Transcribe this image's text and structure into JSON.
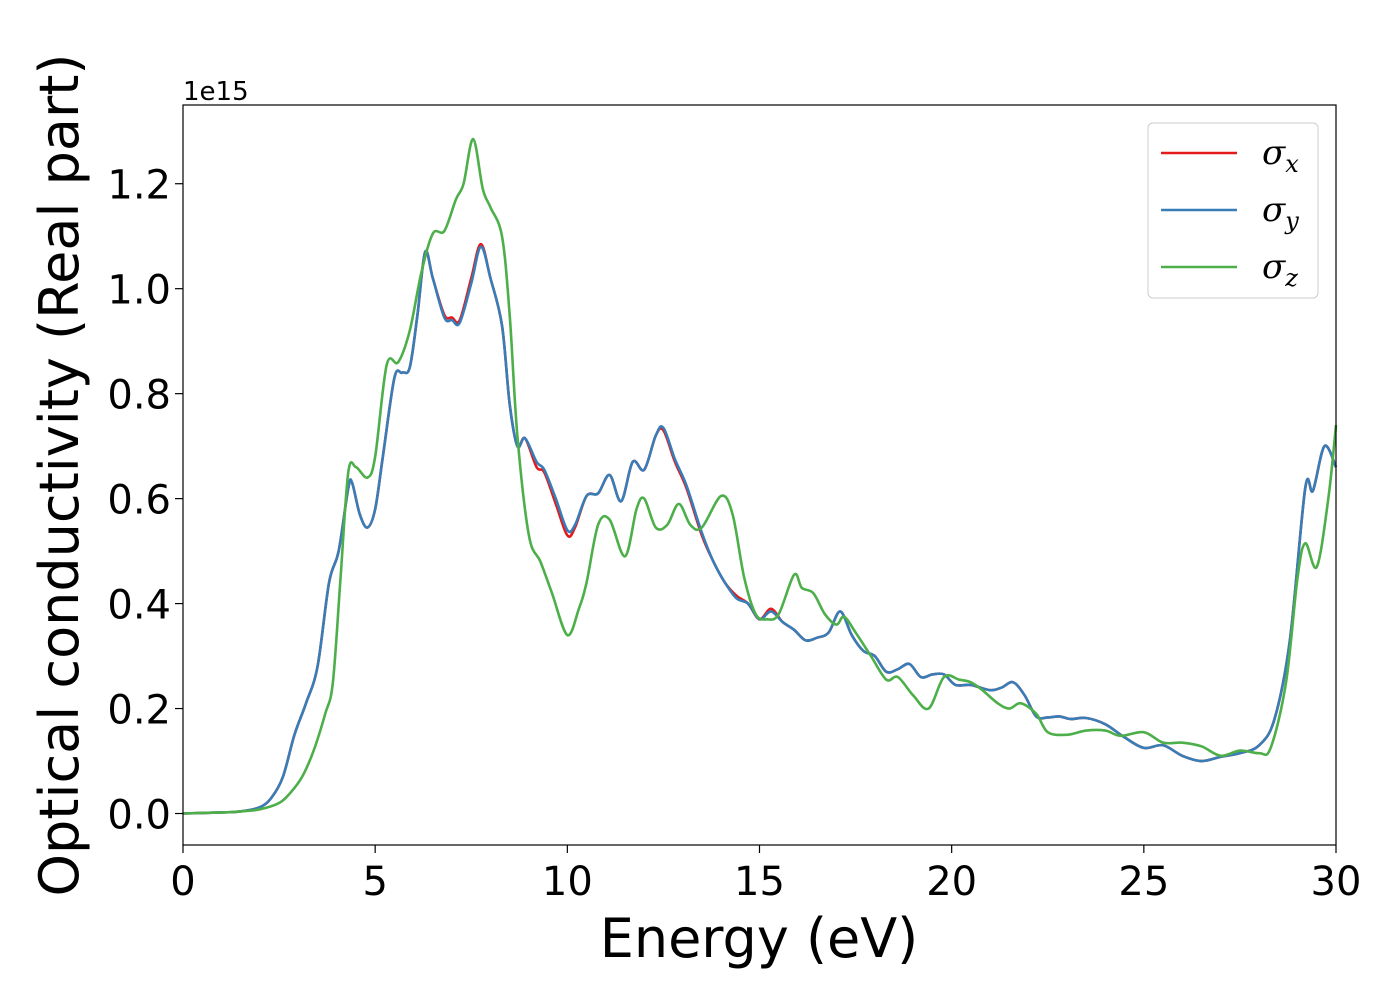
{
  "chart_data": {
    "type": "line",
    "title": "",
    "xlabel": "Energy (eV)",
    "ylabel": "Optical conductivity (Real part)",
    "y_offset_label": "1e15",
    "xlim": [
      0,
      30
    ],
    "ylim": [
      -0.06,
      1.35
    ],
    "x_ticks": [
      0,
      5,
      10,
      15,
      20,
      25,
      30
    ],
    "x_tick_labels": [
      "0",
      "5",
      "10",
      "15",
      "20",
      "25",
      "30"
    ],
    "y_ticks": [
      0.0,
      0.2,
      0.4,
      0.6,
      0.8,
      1.0,
      1.2
    ],
    "y_tick_labels": [
      "0.0",
      "0.2",
      "0.4",
      "0.6",
      "0.8",
      "1.0",
      "1.2"
    ],
    "grid": false,
    "legend_position": "top-right",
    "series": [
      {
        "name": "σx",
        "symbol": "σ",
        "subscript": "x",
        "color": "#e41a1c",
        "points": [
          [
            0,
            0
          ],
          [
            1,
            0.002
          ],
          [
            1.5,
            0.004
          ],
          [
            2,
            0.012
          ],
          [
            2.3,
            0.03
          ],
          [
            2.6,
            0.07
          ],
          [
            2.9,
            0.15
          ],
          [
            3.2,
            0.21
          ],
          [
            3.5,
            0.28
          ],
          [
            3.8,
            0.44
          ],
          [
            4.05,
            0.5
          ],
          [
            4.3,
            0.62
          ],
          [
            4.4,
            0.63
          ],
          [
            4.6,
            0.57
          ],
          [
            4.8,
            0.545
          ],
          [
            5.0,
            0.58
          ],
          [
            5.2,
            0.68
          ],
          [
            5.5,
            0.83
          ],
          [
            5.7,
            0.84
          ],
          [
            5.9,
            0.85
          ],
          [
            6.1,
            0.95
          ],
          [
            6.3,
            1.07
          ],
          [
            6.5,
            1.02
          ],
          [
            6.8,
            0.95
          ],
          [
            7.0,
            0.945
          ],
          [
            7.2,
            0.94
          ],
          [
            7.5,
            1.02
          ],
          [
            7.75,
            1.085
          ],
          [
            8.0,
            1.02
          ],
          [
            8.3,
            0.93
          ],
          [
            8.5,
            0.78
          ],
          [
            8.7,
            0.7
          ],
          [
            8.9,
            0.715
          ],
          [
            9.2,
            0.66
          ],
          [
            9.4,
            0.65
          ],
          [
            9.7,
            0.59
          ],
          [
            10.0,
            0.53
          ],
          [
            10.2,
            0.545
          ],
          [
            10.5,
            0.605
          ],
          [
            10.8,
            0.61
          ],
          [
            11.1,
            0.645
          ],
          [
            11.4,
            0.595
          ],
          [
            11.7,
            0.67
          ],
          [
            12.0,
            0.655
          ],
          [
            12.3,
            0.72
          ],
          [
            12.5,
            0.73
          ],
          [
            12.8,
            0.67
          ],
          [
            13.1,
            0.62
          ],
          [
            13.5,
            0.53
          ],
          [
            13.8,
            0.48
          ],
          [
            14.1,
            0.44
          ],
          [
            14.4,
            0.415
          ],
          [
            14.7,
            0.4
          ],
          [
            15.0,
            0.37
          ],
          [
            15.3,
            0.39
          ],
          [
            15.6,
            0.365
          ],
          [
            15.9,
            0.35
          ],
          [
            16.2,
            0.33
          ],
          [
            16.5,
            0.335
          ],
          [
            16.8,
            0.345
          ],
          [
            17.1,
            0.385
          ],
          [
            17.4,
            0.34
          ],
          [
            17.7,
            0.31
          ],
          [
            18.0,
            0.3
          ],
          [
            18.3,
            0.27
          ],
          [
            18.6,
            0.275
          ],
          [
            18.9,
            0.285
          ],
          [
            19.2,
            0.26
          ],
          [
            19.5,
            0.265
          ],
          [
            19.8,
            0.265
          ],
          [
            20.1,
            0.245
          ],
          [
            20.5,
            0.245
          ],
          [
            21.0,
            0.235
          ],
          [
            21.3,
            0.24
          ],
          [
            21.6,
            0.25
          ],
          [
            21.9,
            0.225
          ],
          [
            22.2,
            0.185
          ],
          [
            22.5,
            0.183
          ],
          [
            22.8,
            0.185
          ],
          [
            23.1,
            0.18
          ],
          [
            23.5,
            0.182
          ],
          [
            24.0,
            0.17
          ],
          [
            24.5,
            0.145
          ],
          [
            25.0,
            0.125
          ],
          [
            25.5,
            0.13
          ],
          [
            26.0,
            0.11
          ],
          [
            26.5,
            0.1
          ],
          [
            27.0,
            0.108
          ],
          [
            27.5,
            0.115
          ],
          [
            28.0,
            0.13
          ],
          [
            28.4,
            0.18
          ],
          [
            28.8,
            0.33
          ],
          [
            29.2,
            0.62
          ],
          [
            29.4,
            0.615
          ],
          [
            29.7,
            0.7
          ],
          [
            30.0,
            0.66
          ]
        ]
      },
      {
        "name": "σy",
        "symbol": "σ",
        "subscript": "y",
        "color": "#377eb8",
        "points": [
          [
            0,
            0
          ],
          [
            1,
            0.002
          ],
          [
            1.5,
            0.004
          ],
          [
            2,
            0.012
          ],
          [
            2.3,
            0.03
          ],
          [
            2.6,
            0.07
          ],
          [
            2.9,
            0.15
          ],
          [
            3.2,
            0.21
          ],
          [
            3.5,
            0.28
          ],
          [
            3.8,
            0.44
          ],
          [
            4.05,
            0.5
          ],
          [
            4.3,
            0.62
          ],
          [
            4.4,
            0.63
          ],
          [
            4.6,
            0.57
          ],
          [
            4.8,
            0.545
          ],
          [
            5.0,
            0.58
          ],
          [
            5.2,
            0.68
          ],
          [
            5.5,
            0.83
          ],
          [
            5.7,
            0.84
          ],
          [
            5.9,
            0.85
          ],
          [
            6.1,
            0.95
          ],
          [
            6.3,
            1.07
          ],
          [
            6.5,
            1.02
          ],
          [
            6.8,
            0.945
          ],
          [
            7.0,
            0.94
          ],
          [
            7.2,
            0.935
          ],
          [
            7.5,
            1.01
          ],
          [
            7.75,
            1.08
          ],
          [
            8.0,
            1.02
          ],
          [
            8.3,
            0.93
          ],
          [
            8.5,
            0.78
          ],
          [
            8.7,
            0.7
          ],
          [
            8.9,
            0.715
          ],
          [
            9.2,
            0.67
          ],
          [
            9.4,
            0.655
          ],
          [
            9.7,
            0.6
          ],
          [
            10.0,
            0.54
          ],
          [
            10.2,
            0.55
          ],
          [
            10.5,
            0.605
          ],
          [
            10.8,
            0.61
          ],
          [
            11.1,
            0.645
          ],
          [
            11.4,
            0.595
          ],
          [
            11.7,
            0.67
          ],
          [
            12.0,
            0.655
          ],
          [
            12.3,
            0.72
          ],
          [
            12.5,
            0.735
          ],
          [
            12.8,
            0.675
          ],
          [
            13.1,
            0.625
          ],
          [
            13.5,
            0.535
          ],
          [
            13.8,
            0.48
          ],
          [
            14.1,
            0.44
          ],
          [
            14.4,
            0.41
          ],
          [
            14.7,
            0.4
          ],
          [
            15.0,
            0.37
          ],
          [
            15.3,
            0.385
          ],
          [
            15.6,
            0.365
          ],
          [
            15.9,
            0.35
          ],
          [
            16.2,
            0.33
          ],
          [
            16.5,
            0.335
          ],
          [
            16.8,
            0.345
          ],
          [
            17.1,
            0.385
          ],
          [
            17.4,
            0.34
          ],
          [
            17.7,
            0.31
          ],
          [
            18.0,
            0.3
          ],
          [
            18.3,
            0.27
          ],
          [
            18.6,
            0.275
          ],
          [
            18.9,
            0.285
          ],
          [
            19.2,
            0.26
          ],
          [
            19.5,
            0.265
          ],
          [
            19.8,
            0.265
          ],
          [
            20.1,
            0.245
          ],
          [
            20.5,
            0.245
          ],
          [
            21.0,
            0.235
          ],
          [
            21.3,
            0.24
          ],
          [
            21.6,
            0.25
          ],
          [
            21.9,
            0.225
          ],
          [
            22.2,
            0.185
          ],
          [
            22.5,
            0.183
          ],
          [
            22.8,
            0.185
          ],
          [
            23.1,
            0.18
          ],
          [
            23.5,
            0.182
          ],
          [
            24.0,
            0.17
          ],
          [
            24.5,
            0.145
          ],
          [
            25.0,
            0.125
          ],
          [
            25.5,
            0.13
          ],
          [
            26.0,
            0.11
          ],
          [
            26.5,
            0.1
          ],
          [
            27.0,
            0.108
          ],
          [
            27.5,
            0.115
          ],
          [
            28.0,
            0.13
          ],
          [
            28.4,
            0.18
          ],
          [
            28.8,
            0.33
          ],
          [
            29.2,
            0.62
          ],
          [
            29.4,
            0.615
          ],
          [
            29.7,
            0.7
          ],
          [
            30.0,
            0.66
          ]
        ]
      },
      {
        "name": "σz",
        "symbol": "σ",
        "subscript": "z",
        "color": "#4daf4a",
        "points": [
          [
            0,
            0
          ],
          [
            1,
            0.002
          ],
          [
            1.5,
            0.004
          ],
          [
            2,
            0.008
          ],
          [
            2.5,
            0.02
          ],
          [
            2.8,
            0.04
          ],
          [
            3.1,
            0.07
          ],
          [
            3.4,
            0.12
          ],
          [
            3.7,
            0.19
          ],
          [
            3.9,
            0.25
          ],
          [
            4.1,
            0.45
          ],
          [
            4.3,
            0.65
          ],
          [
            4.5,
            0.66
          ],
          [
            4.8,
            0.64
          ],
          [
            5.0,
            0.68
          ],
          [
            5.3,
            0.855
          ],
          [
            5.6,
            0.86
          ],
          [
            5.9,
            0.92
          ],
          [
            6.2,
            1.03
          ],
          [
            6.5,
            1.105
          ],
          [
            6.8,
            1.11
          ],
          [
            7.1,
            1.17
          ],
          [
            7.3,
            1.2
          ],
          [
            7.55,
            1.285
          ],
          [
            7.8,
            1.19
          ],
          [
            8.0,
            1.155
          ],
          [
            8.3,
            1.1
          ],
          [
            8.5,
            0.95
          ],
          [
            8.7,
            0.72
          ],
          [
            9.0,
            0.53
          ],
          [
            9.3,
            0.48
          ],
          [
            9.6,
            0.42
          ],
          [
            10.0,
            0.34
          ],
          [
            10.3,
            0.39
          ],
          [
            10.5,
            0.44
          ],
          [
            10.8,
            0.55
          ],
          [
            11.1,
            0.56
          ],
          [
            11.5,
            0.49
          ],
          [
            11.8,
            0.58
          ],
          [
            12.0,
            0.6
          ],
          [
            12.3,
            0.545
          ],
          [
            12.6,
            0.55
          ],
          [
            12.9,
            0.59
          ],
          [
            13.2,
            0.55
          ],
          [
            13.5,
            0.545
          ],
          [
            14.0,
            0.605
          ],
          [
            14.3,
            0.57
          ],
          [
            14.6,
            0.45
          ],
          [
            14.9,
            0.38
          ],
          [
            15.2,
            0.37
          ],
          [
            15.5,
            0.38
          ],
          [
            15.9,
            0.455
          ],
          [
            16.1,
            0.43
          ],
          [
            16.4,
            0.42
          ],
          [
            16.7,
            0.38
          ],
          [
            17.0,
            0.36
          ],
          [
            17.2,
            0.375
          ],
          [
            17.5,
            0.345
          ],
          [
            17.9,
            0.3
          ],
          [
            18.3,
            0.255
          ],
          [
            18.6,
            0.26
          ],
          [
            19.0,
            0.225
          ],
          [
            19.4,
            0.2
          ],
          [
            19.8,
            0.26
          ],
          [
            20.2,
            0.255
          ],
          [
            20.5,
            0.25
          ],
          [
            20.8,
            0.235
          ],
          [
            21.2,
            0.21
          ],
          [
            21.5,
            0.2
          ],
          [
            21.8,
            0.21
          ],
          [
            22.2,
            0.19
          ],
          [
            22.5,
            0.155
          ],
          [
            23.0,
            0.15
          ],
          [
            23.5,
            0.158
          ],
          [
            24.0,
            0.158
          ],
          [
            24.4,
            0.148
          ],
          [
            25.0,
            0.155
          ],
          [
            25.5,
            0.135
          ],
          [
            26.0,
            0.135
          ],
          [
            26.5,
            0.128
          ],
          [
            27.0,
            0.11
          ],
          [
            27.5,
            0.12
          ],
          [
            28.0,
            0.115
          ],
          [
            28.3,
            0.125
          ],
          [
            28.7,
            0.25
          ],
          [
            29.0,
            0.45
          ],
          [
            29.2,
            0.515
          ],
          [
            29.5,
            0.47
          ],
          [
            29.8,
            0.6
          ],
          [
            30.0,
            0.74
          ]
        ]
      }
    ]
  }
}
